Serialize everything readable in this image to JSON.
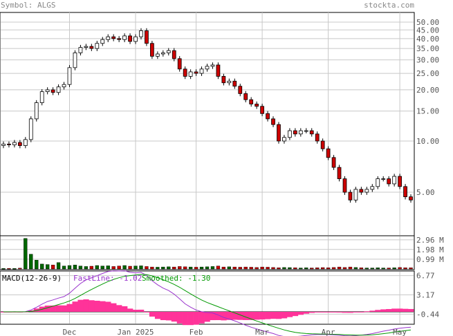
{
  "header": {
    "symbol": "Symbol: ALGS",
    "site": "stockta.com"
  },
  "colors": {
    "grid": "#c8c8c8",
    "axis_text": "#555555",
    "up_fill": "#ffffff",
    "down_fill": "#cc0000",
    "candle_line": "#000000",
    "volume_up": "#006600",
    "volume_down": "#cc0000",
    "macd_fast": "#9933cc",
    "macd_smoothed": "#009900",
    "macd_hist": "#ff3399"
  },
  "chart_data": [
    {
      "type": "candlestick",
      "title": "",
      "scale": "log",
      "y_ticks": [
        "50.00",
        "45.00",
        "40.00",
        "35.00",
        "30.00",
        "25.00",
        "20.00",
        "15.00",
        "10.00",
        "5.00"
      ],
      "x_tick_labels": [
        "Dec",
        "Jan 2025",
        "Feb",
        "Mar",
        "Apr",
        "May"
      ],
      "close_series": [
        9.6,
        9.5,
        9.8,
        9.4,
        10.2,
        13.5,
        16.8,
        19.5,
        20.0,
        19.3,
        20.8,
        21.5,
        27.0,
        33.0,
        35.5,
        36.0,
        35.0,
        37.5,
        39.5,
        41.0,
        40.0,
        39.5,
        41.5,
        38.5,
        41.0,
        44.5,
        37.5,
        31.5,
        32.5,
        33.0,
        34.0,
        30.5,
        26.5,
        24.0,
        25.5,
        25.0,
        26.5,
        27.5,
        28.0,
        24.0,
        22.0,
        22.5,
        21.0,
        19.0,
        17.5,
        16.5,
        16.0,
        14.5,
        13.5,
        12.5,
        10.0,
        10.5,
        11.5,
        11.0,
        11.5,
        11.5,
        11.0,
        10.0,
        9.0,
        8.0,
        7.0,
        6.0,
        5.0,
        4.5,
        5.2,
        5.0,
        5.2,
        5.4,
        6.0,
        6.0,
        5.6,
        6.2,
        5.4,
        4.7,
        4.5
      ],
      "x_ticks": [
        {
          "label": "Dec",
          "index": 12
        },
        {
          "label": "Jan 2025",
          "index": 24
        },
        {
          "label": "Feb",
          "index": 35
        },
        {
          "label": "Mar",
          "index": 47
        },
        {
          "label": "Apr",
          "index": 59
        },
        {
          "label": "May",
          "index": 72
        }
      ]
    },
    {
      "type": "bar",
      "name": "volume",
      "unit": "M",
      "y_ticks": [
        "2.96 M",
        "1.98 M",
        "0.99 M"
      ],
      "values": [
        0.05,
        0.06,
        0.05,
        0.08,
        3.1,
        1.5,
        0.9,
        0.5,
        0.45,
        0.4,
        0.65,
        0.3,
        0.35,
        0.4,
        0.3,
        0.25,
        0.28,
        0.35,
        0.3,
        0.32,
        0.25,
        0.3,
        0.35,
        0.28,
        0.3,
        0.32,
        0.25,
        0.2,
        0.18,
        0.2,
        0.22,
        0.2,
        0.25,
        0.22,
        0.2,
        0.18,
        0.2,
        0.22,
        0.25,
        0.3,
        0.2,
        0.22,
        0.2,
        0.18,
        0.2,
        0.18,
        0.15,
        0.2,
        0.18,
        0.15,
        0.12,
        0.15,
        0.14,
        0.12,
        0.1,
        0.12,
        0.1,
        0.12,
        0.14,
        0.12,
        0.15,
        0.2,
        0.15,
        0.2,
        0.15,
        0.12,
        0.1,
        0.1,
        0.12,
        0.1,
        0.1,
        0.12,
        0.15,
        0.12,
        0.12
      ]
    },
    {
      "type": "line",
      "name": "MACD",
      "label": "MACD(12-26-9)",
      "fast_label": "FastLine: -1.02",
      "smoothed_label": "Smoothed: -1.30",
      "y_ticks": [
        "6.77",
        "3.17",
        "-0.44"
      ]
    }
  ]
}
